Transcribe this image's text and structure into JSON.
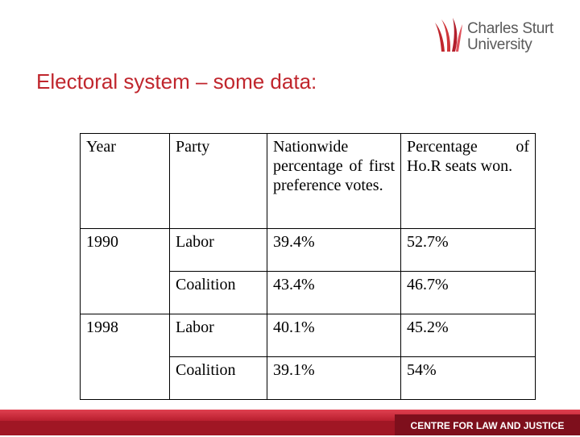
{
  "header": {
    "title": "Electoral system – some data:"
  },
  "logo": {
    "lines": [
      "Charles Sturt",
      "University"
    ]
  },
  "table": {
    "columns": [
      "Year",
      "Party",
      "Nationwide percentage of first preference votes.",
      "Percentage of Ho.R seats won."
    ],
    "rows": [
      [
        "1990",
        "Labor",
        "39.4%",
        "52.7%"
      ],
      [
        "Coalition",
        "43.4%",
        "46.7%"
      ],
      [
        "1998",
        "Labor",
        "40.1%",
        "45.2%"
      ],
      [
        "Coalition",
        "39.1%",
        "54%"
      ]
    ]
  },
  "footer": {
    "text": "CENTRE FOR LAW AND JUSTICE"
  }
}
